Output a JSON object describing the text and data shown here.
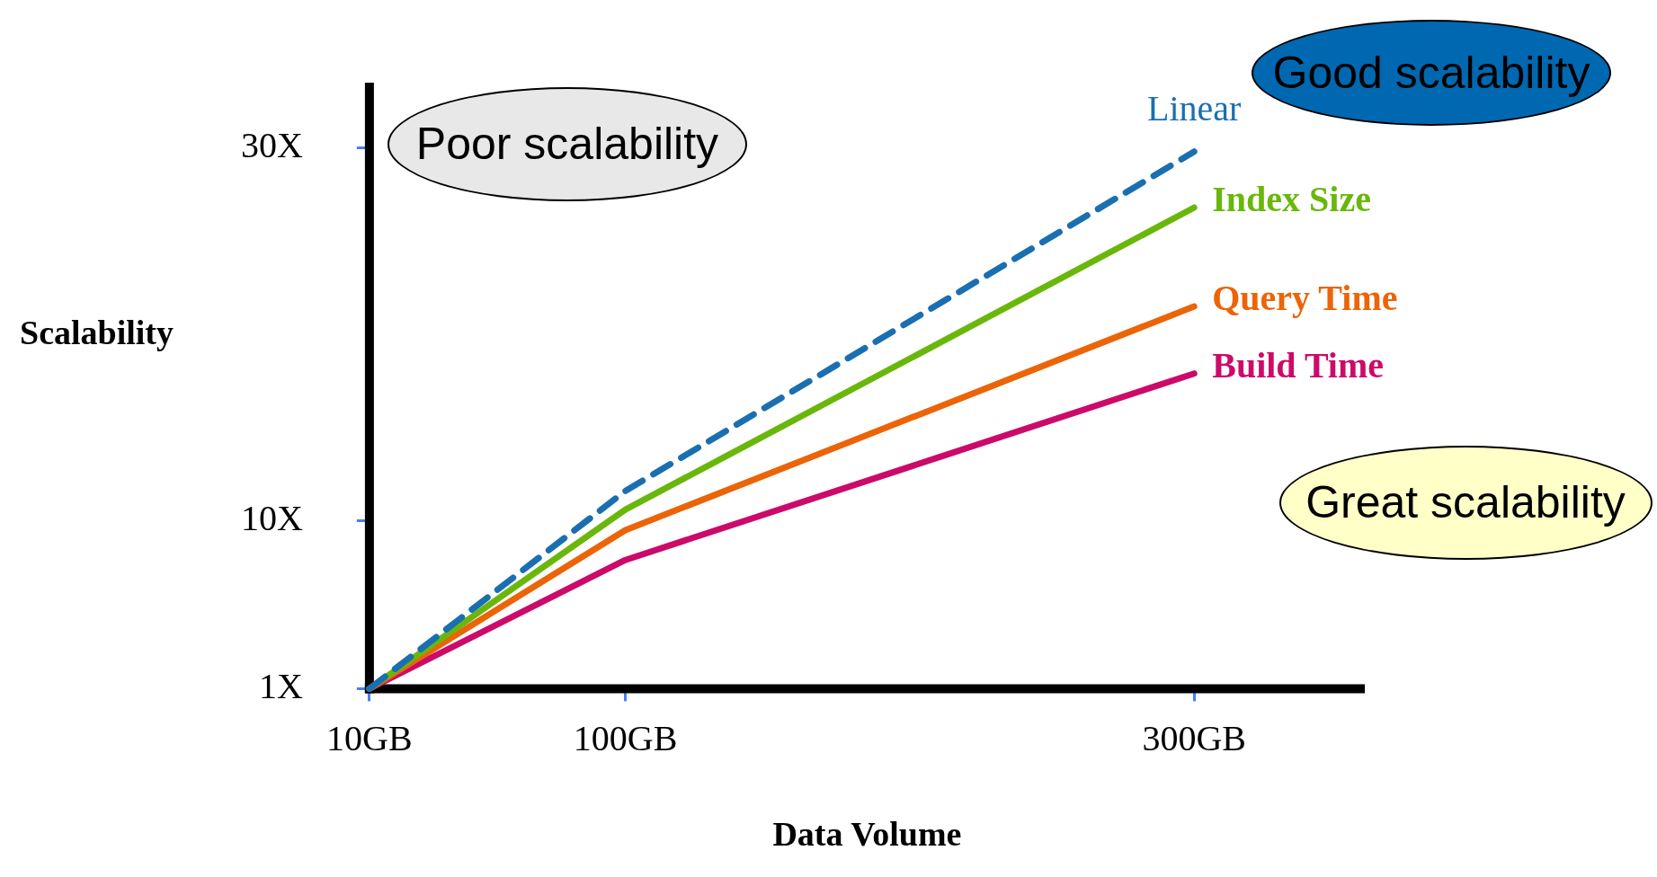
{
  "chart_data": {
    "type": "line",
    "xlabel": "Data Volume",
    "ylabel": "Scalability",
    "x": [
      10,
      100,
      300
    ],
    "xlim": [
      10,
      360
    ],
    "xticks": [
      {
        "value": 10,
        "label": "10GB"
      },
      {
        "value": 100,
        "label": "100GB"
      },
      {
        "value": 300,
        "label": "300GB"
      }
    ],
    "ylim": [
      1,
      33.5
    ],
    "yticks": [
      {
        "value": 1,
        "label": "1X"
      },
      {
        "value": 10,
        "label": "10X"
      },
      {
        "value": 30,
        "label": "30X"
      }
    ],
    "grid": false,
    "legend": false,
    "marker": "none",
    "series": [
      {
        "name": "Linear",
        "color": "#1a6fb0",
        "values": [
          1,
          11.6,
          29.8
        ],
        "line_style": "dashed"
      },
      {
        "name": "Index Size",
        "color": "#6ab70c",
        "values": [
          1,
          10.6,
          26.8
        ],
        "line_style": "solid"
      },
      {
        "name": "Query Time",
        "color": "#ec6408",
        "values": [
          1,
          9.5,
          21.5
        ],
        "line_style": "solid"
      },
      {
        "name": "Build Time",
        "color": "#cc0a6a",
        "values": [
          1,
          7.9,
          17.9
        ],
        "line_style": "solid"
      }
    ],
    "annotations": [
      "Poor scalability",
      "Good scalability",
      "Great scalability"
    ]
  }
}
